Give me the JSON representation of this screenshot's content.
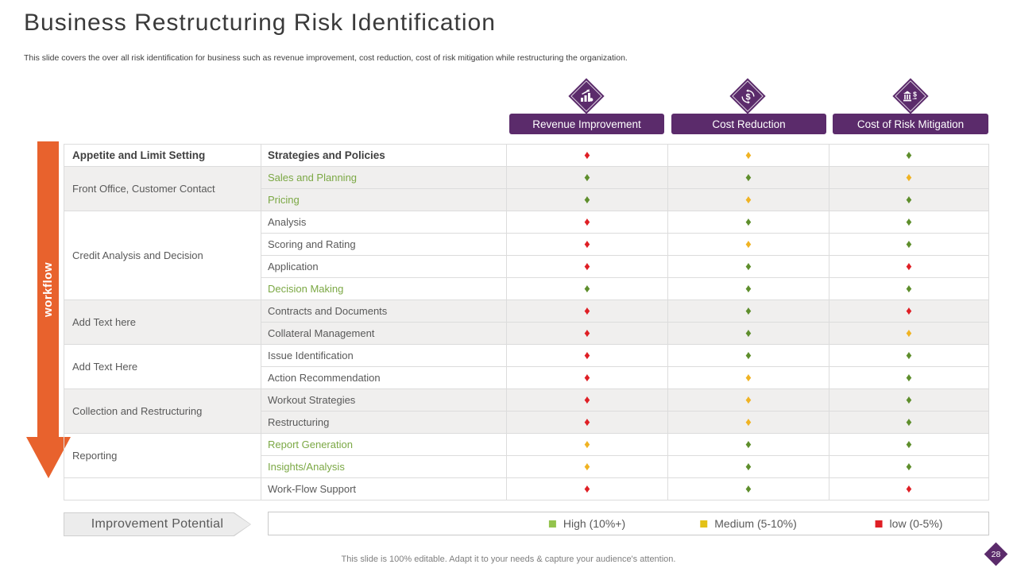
{
  "slide": {
    "title": "Business Restructuring Risk Identification",
    "subtitle": "This slide covers the over all risk identification for business such as revenue improvement, cost reduction, cost of risk mitigation while restructuring the organization.",
    "footer": "This slide is 100% editable. Adapt it to your needs & capture your audience's attention.",
    "page_number": "28",
    "workflow_label": "workflow"
  },
  "colors": {
    "purple": "#5b2b6b",
    "orange": "#e8622d",
    "red": "#df1f25",
    "yellow": "#f0b323",
    "green": "#5e8e2c",
    "green_text": "#7ba844",
    "stripe_gray": "#f0efee",
    "legend_high_green": "#93c34d"
  },
  "columns": [
    {
      "label": "Revenue Improvement",
      "icon": "growth-chart-icon"
    },
    {
      "label": "Cost Reduction",
      "icon": "dollar-cycle-icon"
    },
    {
      "label": "Cost of Risk Mitigation",
      "icon": "bank-dollar-icon"
    }
  ],
  "table": {
    "header": {
      "col1": "Appetite and Limit Setting",
      "col2": "Strategies and Policies",
      "marks": [
        "red",
        "yellow",
        "green"
      ]
    },
    "groups": [
      {
        "label": "Front Office, Customer Contact",
        "shaded": true,
        "rows": [
          {
            "strategy": "Sales and Planning",
            "green_text": true,
            "marks": [
              "green",
              "green",
              "yellow"
            ]
          },
          {
            "strategy": "Pricing",
            "green_text": true,
            "marks": [
              "green",
              "yellow",
              "green"
            ]
          }
        ]
      },
      {
        "label": "Credit Analysis and Decision",
        "shaded": false,
        "rows": [
          {
            "strategy": "Analysis",
            "green_text": false,
            "marks": [
              "red",
              "green",
              "green"
            ]
          },
          {
            "strategy": "Scoring and Rating",
            "green_text": false,
            "marks": [
              "red",
              "yellow",
              "green"
            ]
          },
          {
            "strategy": "Application",
            "green_text": false,
            "marks": [
              "red",
              "green",
              "red"
            ]
          },
          {
            "strategy": "Decision Making",
            "green_text": true,
            "marks": [
              "green",
              "green",
              "green"
            ]
          }
        ]
      },
      {
        "label": "Add Text here",
        "shaded": true,
        "rows": [
          {
            "strategy": "Contracts and Documents",
            "green_text": false,
            "marks": [
              "red",
              "green",
              "red"
            ]
          },
          {
            "strategy": "Collateral Management",
            "green_text": false,
            "marks": [
              "red",
              "green",
              "yellow"
            ]
          }
        ]
      },
      {
        "label": "Add Text Here",
        "shaded": false,
        "rows": [
          {
            "strategy": "Issue Identification",
            "green_text": false,
            "marks": [
              "red",
              "green",
              "green"
            ]
          },
          {
            "strategy": "Action Recommendation",
            "green_text": false,
            "marks": [
              "red",
              "yellow",
              "green"
            ]
          }
        ]
      },
      {
        "label": "Collection and Restructuring",
        "shaded": true,
        "rows": [
          {
            "strategy": "Workout Strategies",
            "green_text": false,
            "marks": [
              "red",
              "yellow",
              "green"
            ]
          },
          {
            "strategy": "Restructuring",
            "green_text": false,
            "marks": [
              "red",
              "yellow",
              "green"
            ]
          }
        ]
      },
      {
        "label": "Reporting",
        "shaded": false,
        "rows": [
          {
            "strategy": "Report Generation",
            "green_text": true,
            "marks": [
              "yellow",
              "green",
              "green"
            ]
          },
          {
            "strategy": "Insights/Analysis",
            "green_text": true,
            "marks": [
              "yellow",
              "green",
              "green"
            ]
          }
        ]
      },
      {
        "label": "",
        "shaded": false,
        "rows": [
          {
            "strategy": "Work-Flow Support",
            "green_text": false,
            "marks": [
              "red",
              "green",
              "red"
            ]
          }
        ]
      }
    ]
  },
  "legend": {
    "title": "Improvement Potential",
    "items": [
      {
        "label": "High (10%+)",
        "color": "#93c34d"
      },
      {
        "label": "Medium (5-10%)",
        "color": "#e3c117"
      },
      {
        "label": "low (0-5%)",
        "color": "#df1f25"
      }
    ]
  }
}
